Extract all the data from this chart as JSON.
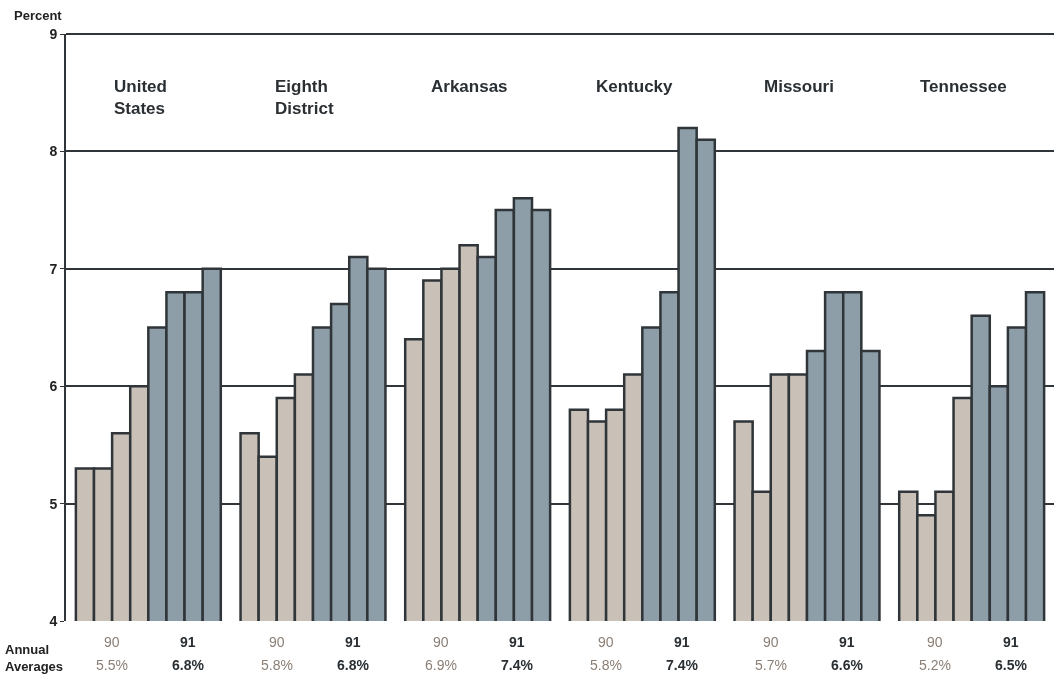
{
  "chart_data": {
    "type": "bar",
    "ylabel": "Percent",
    "categories": [
      "United States",
      "Eighth District",
      "Arkansas",
      "Kentucky",
      "Missouri",
      "Tennessee"
    ],
    "series": [
      {
        "color": "#c9c1b8",
        "values": [
          5.3,
          5.6,
          6.4,
          5.8,
          5.7,
          5.1
        ]
      },
      {
        "color": "#c9c1b8",
        "values": [
          5.3,
          5.4,
          6.9,
          5.7,
          5.1,
          4.9
        ]
      },
      {
        "color": "#c9c1b8",
        "values": [
          5.6,
          5.9,
          7.0,
          5.8,
          6.1,
          5.1
        ]
      },
      {
        "color": "#c9c1b8",
        "values": [
          6.0,
          6.1,
          7.2,
          6.1,
          6.1,
          5.9
        ]
      },
      {
        "color": "#8d9ea8",
        "values": [
          6.5,
          6.5,
          7.1,
          6.5,
          6.3,
          6.6
        ]
      },
      {
        "color": "#8d9ea8",
        "values": [
          6.8,
          6.7,
          7.5,
          6.8,
          6.8,
          6.0
        ]
      },
      {
        "color": "#8d9ea8",
        "values": [
          6.8,
          7.1,
          7.6,
          8.2,
          6.8,
          6.5
        ]
      },
      {
        "color": "#8d9ea8",
        "values": [
          7.0,
          7.0,
          7.5,
          8.1,
          6.3,
          6.8
        ]
      }
    ],
    "ylim": [
      4,
      9
    ],
    "yticks": [
      4,
      5,
      6,
      7,
      8,
      9
    ],
    "grid": "y",
    "annotations": [
      "Annual Averages",
      "90",
      "5.5%",
      "91",
      "6.8%",
      "90",
      "5.8%",
      "91",
      "6.8%",
      "90",
      "6.9%",
      "91",
      "7.4%",
      "90",
      "5.8%",
      "91",
      "7.4%",
      "90",
      "5.7%",
      "91",
      "6.6%",
      "90",
      "5.2%",
      "91",
      "6.5%"
    ]
  }
}
